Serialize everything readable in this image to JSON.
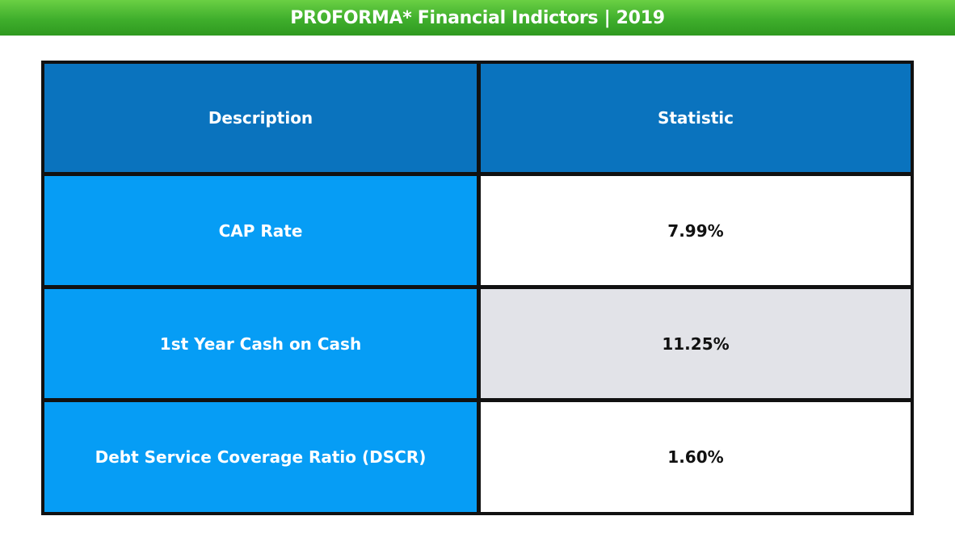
{
  "title": "PROFORMA* Financial Indictors | 2019",
  "table": {
    "headers": [
      "Description",
      "Statistic"
    ],
    "rows": [
      {
        "description": "CAP Rate",
        "statistic": "7.99%"
      },
      {
        "description": "1st Year Cash on Cash",
        "statistic": "11.25%"
      },
      {
        "description": "Debt Service Coverage Ratio (DSCR)",
        "statistic": "1.60%"
      }
    ]
  },
  "colors": {
    "banner": "#3fae2c",
    "header_cell": "#0a73be",
    "label_cell": "#069df5",
    "value_cell": "#ffffff",
    "value_cell_alt": "#e2e3e8",
    "border": "#111111"
  }
}
